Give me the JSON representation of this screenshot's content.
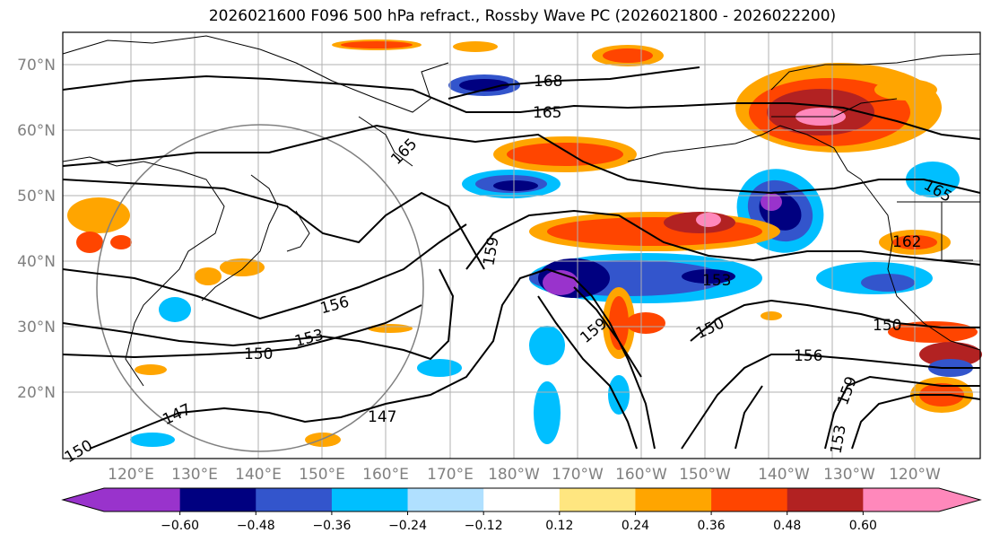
{
  "title": "2026021600 F096 500 hPa refract., Rossby Wave PC (2026021800 - 2026022200)",
  "map": {
    "lat_labels": [
      "70°N",
      "60°N",
      "50°N",
      "40°N",
      "30°N",
      "20°N"
    ],
    "lon_labels": [
      "120°E",
      "130°E",
      "140°E",
      "150°E",
      "160°E",
      "170°E",
      "180°W",
      "170°W",
      "160°W",
      "150°W",
      "140°W",
      "130°W",
      "120°W"
    ],
    "contour_labels": [
      "168",
      "165",
      "165",
      "165",
      "162",
      "159",
      "156",
      "153",
      "153",
      "150",
      "150",
      "150",
      "147",
      "147",
      "159",
      "156",
      "159",
      "153",
      "150"
    ]
  },
  "colorbar": {
    "colors": [
      "#9933cc",
      "#000080",
      "#3355cc",
      "#00bfff",
      "#b0e0ff",
      "#ffffff",
      "#ffe680",
      "#ffa500",
      "#ff4500",
      "#b22222",
      "#ff88bb"
    ],
    "extend_left_color": "#9933cc",
    "extend_right_color": "#ff88bb",
    "tick_labels": [
      "−0.60",
      "−0.48",
      "−0.36",
      "−0.24",
      "−0.12",
      "0.12",
      "0.24",
      "0.36",
      "0.48",
      "0.60"
    ]
  }
}
